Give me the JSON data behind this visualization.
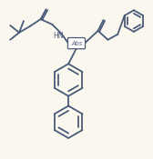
{
  "bg_color": "#faf8ee",
  "line_color": "#4a5a7a",
  "line_width": 1.3,
  "figsize": [
    1.68,
    1.75
  ],
  "dpi": 100
}
